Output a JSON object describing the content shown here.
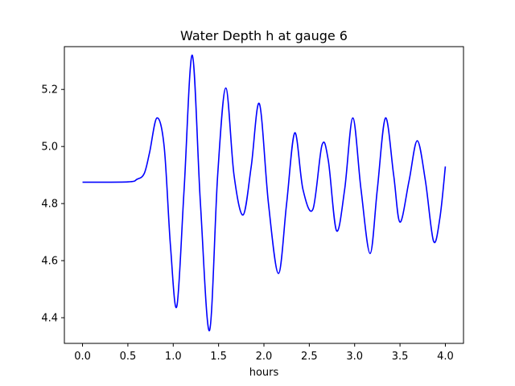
{
  "chart_data": {
    "type": "line",
    "title": "Water Depth h at gauge 6",
    "xlabel": "hours",
    "ylabel": "",
    "xlim": [
      -0.2,
      4.2
    ],
    "ylim": [
      4.31,
      5.35
    ],
    "x_ticks": [
      0.0,
      0.5,
      1.0,
      1.5,
      2.0,
      2.5,
      3.0,
      3.5,
      4.0
    ],
    "x_tick_labels": [
      "0.0",
      "0.5",
      "1.0",
      "1.5",
      "2.0",
      "2.5",
      "3.0",
      "3.5",
      "4.0"
    ],
    "y_ticks": [
      4.4,
      4.6,
      4.8,
      5.0,
      5.2
    ],
    "y_tick_labels": [
      "4.4",
      "4.6",
      "4.8",
      "5.0",
      "5.2"
    ],
    "grid": false,
    "legend": false,
    "line_color": "#0000ff",
    "series": [
      {
        "x": [
          0.0,
          0.5,
          0.6,
          0.68,
          0.74,
          0.82,
          0.9,
          0.97,
          1.04,
          1.12,
          1.21,
          1.3,
          1.4,
          1.49,
          1.58,
          1.67,
          1.77,
          1.86,
          1.95,
          2.05,
          2.16,
          2.25,
          2.34,
          2.43,
          2.54,
          2.64,
          2.71,
          2.8,
          2.89,
          2.98,
          3.07,
          3.17,
          3.25,
          3.34,
          3.43,
          3.5,
          3.6,
          3.69,
          3.78,
          3.87,
          3.94,
          4.0
        ],
        "y": [
          4.875,
          4.876,
          4.885,
          4.905,
          4.98,
          5.1,
          5.0,
          4.65,
          4.44,
          4.85,
          5.32,
          4.8,
          4.355,
          4.9,
          5.205,
          4.9,
          4.76,
          4.93,
          5.15,
          4.8,
          4.555,
          4.8,
          5.048,
          4.85,
          4.78,
          5.005,
          4.95,
          4.705,
          4.85,
          5.1,
          4.85,
          4.625,
          4.85,
          5.1,
          4.9,
          4.735,
          4.88,
          5.02,
          4.88,
          4.668,
          4.75,
          4.93
        ]
      }
    ]
  }
}
